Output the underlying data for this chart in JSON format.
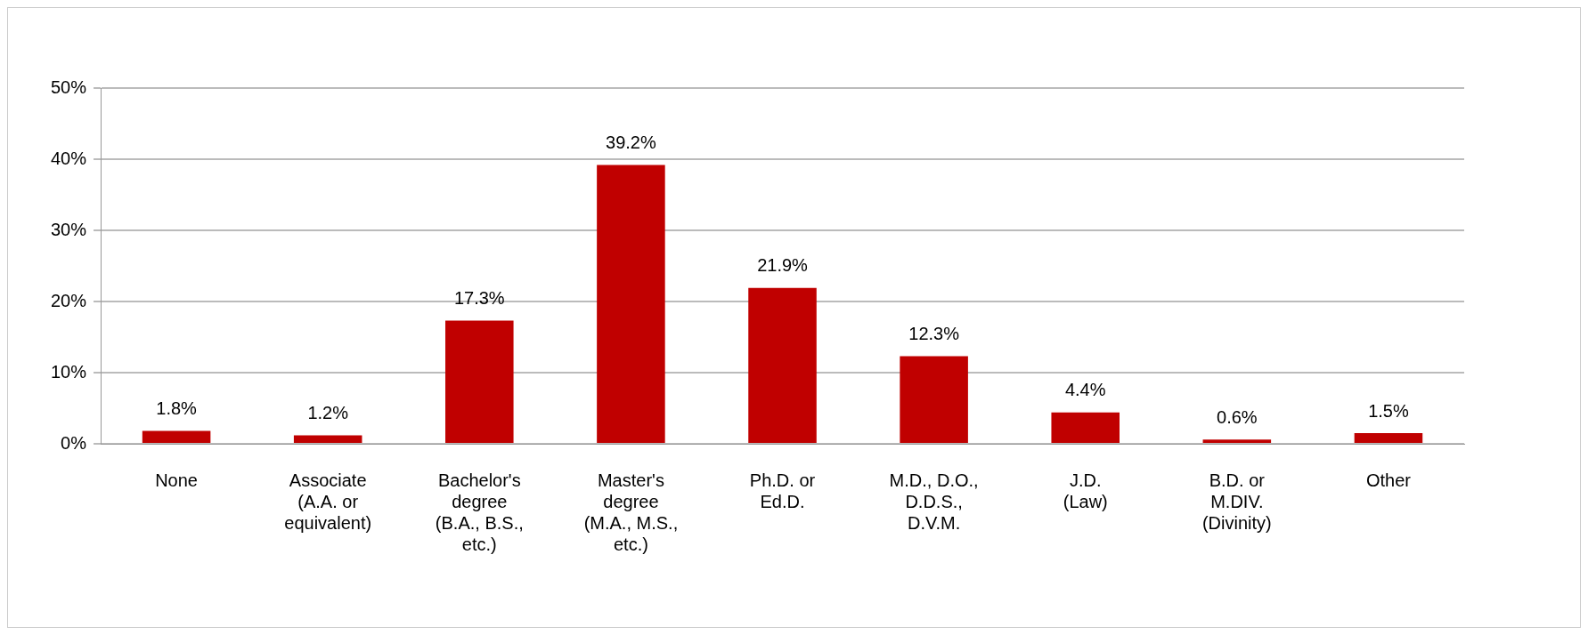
{
  "chart_data": {
    "type": "bar",
    "categories": [
      "None",
      "Associate\n(A.A. or\nequivalent)",
      "Bachelor's\ndegree\n(B.A., B.S.,\netc.)",
      "Master's\ndegree\n(M.A., M.S.,\netc.)",
      "Ph.D. or\nEd.D.",
      "M.D., D.O.,\nD.D.S.,\nD.V.M.",
      "J.D.\n(Law)",
      "B.D. or\nM.DIV.\n(Divinity)",
      "Other"
    ],
    "values": [
      1.8,
      1.2,
      17.3,
      39.2,
      21.9,
      12.3,
      4.4,
      0.6,
      1.5
    ],
    "value_labels": [
      "1.8%",
      "1.2%",
      "17.3%",
      "39.2%",
      "21.9%",
      "12.3%",
      "4.4%",
      "0.6%",
      "1.5%"
    ],
    "color": "#c00000",
    "ylim": [
      0,
      50
    ],
    "yticks": [
      {
        "value": 0,
        "label": "0%"
      },
      {
        "value": 10,
        "label": "10%"
      },
      {
        "value": 20,
        "label": "20%"
      },
      {
        "value": 30,
        "label": "30%"
      },
      {
        "value": 40,
        "label": "40%"
      },
      {
        "value": 50,
        "label": "50%"
      }
    ],
    "grid": "y",
    "legend": false
  }
}
